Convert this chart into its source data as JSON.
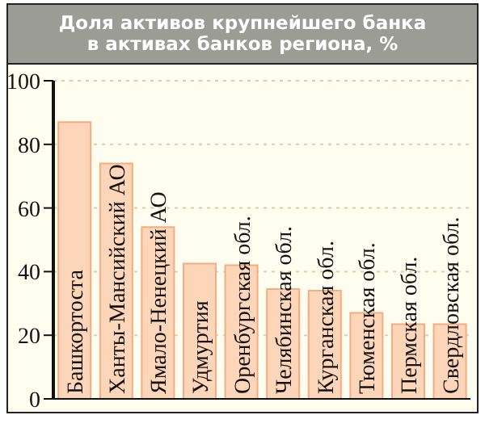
{
  "chart_data": {
    "type": "bar",
    "title": "Доля активов крупнейшего банка в активах банков региона, %",
    "categories": [
      "Башкортоста",
      "Ханты-Мансийский АО",
      "Ямало-Ненецкий АО",
      "Удмуртия",
      "Оренбургская обл.",
      "Челябинская обл.",
      "Курганская обл.",
      "Тюменская обл.",
      "Пермская обл.",
      "Свердловская обл."
    ],
    "values": [
      87,
      74,
      54,
      42.5,
      42,
      34.5,
      34,
      27,
      23.5,
      23.5
    ],
    "color": "#fdd5b8",
    "ylim": [
      0,
      100
    ],
    "yticks": [
      0,
      20,
      40,
      60,
      80,
      100
    ],
    "grid": "y"
  }
}
